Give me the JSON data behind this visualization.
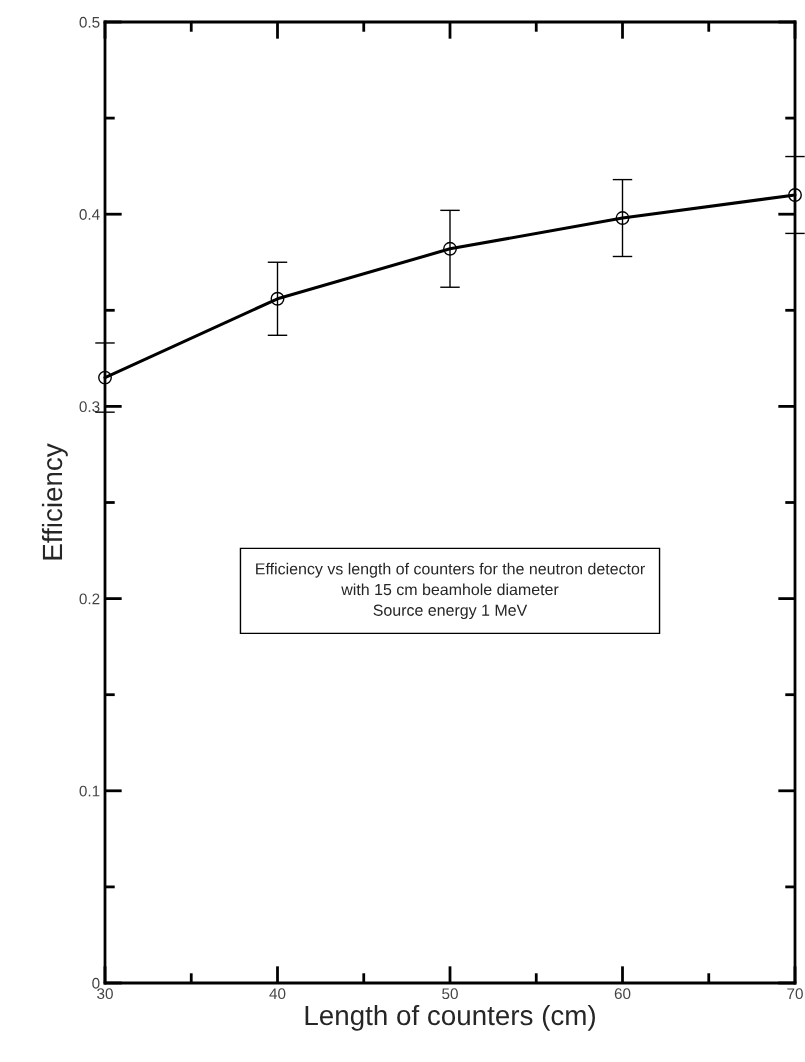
{
  "chart_data": {
    "type": "line",
    "xlabel": "Length of counters (cm)",
    "ylabel": "Efficiency",
    "x": [
      30,
      40,
      50,
      60,
      70
    ],
    "series": [
      {
        "color": "#000000",
        "values": [
          0.315,
          0.356,
          0.382,
          0.398,
          0.41
        ],
        "errors": [
          0.018,
          0.019,
          0.02,
          0.02,
          0.02
        ]
      }
    ],
    "xlim": [
      30,
      70
    ],
    "xticks": [
      30,
      40,
      50,
      60,
      70
    ],
    "ylim": [
      0,
      0.5
    ],
    "yticks": [
      0,
      0.1,
      0.2,
      0.3,
      0.4,
      0.5
    ],
    "marker": "circle",
    "line_style": "solid",
    "grid": false,
    "legend": false,
    "annotations": [
      "Efficiency vs length of counters for the neutron detector\nwith 15 cm beamhole diameter\nSource energy 1 MeV"
    ]
  }
}
